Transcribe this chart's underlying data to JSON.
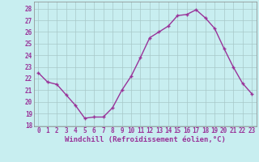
{
  "x": [
    0,
    1,
    2,
    3,
    4,
    5,
    6,
    7,
    8,
    9,
    10,
    11,
    12,
    13,
    14,
    15,
    16,
    17,
    18,
    19,
    20,
    21,
    22,
    23
  ],
  "y": [
    22.5,
    21.7,
    21.5,
    20.6,
    19.7,
    18.6,
    18.7,
    18.7,
    19.5,
    21.0,
    22.2,
    23.8,
    25.5,
    26.0,
    26.5,
    27.4,
    27.5,
    27.9,
    27.2,
    26.3,
    24.6,
    23.0,
    21.6,
    20.7
  ],
  "line_color": "#993399",
  "marker": "+",
  "marker_size": 3,
  "marker_linewidth": 1.0,
  "bg_color": "#c8eef0",
  "grid_color": "#a8c8c8",
  "ylabel_ticks": [
    18,
    19,
    20,
    21,
    22,
    23,
    24,
    25,
    26,
    27,
    28
  ],
  "xlabel_ticks": [
    0,
    1,
    2,
    3,
    4,
    5,
    6,
    7,
    8,
    9,
    10,
    11,
    12,
    13,
    14,
    15,
    16,
    17,
    18,
    19,
    20,
    21,
    22,
    23
  ],
  "xlabel": "Windchill (Refroidissement éolien,°C)",
  "ylim": [
    17.9,
    28.6
  ],
  "xlim": [
    -0.5,
    23.5
  ],
  "tick_fontsize": 5.5,
  "xlabel_fontsize": 6.5,
  "line_width": 1.0,
  "tick_color": "#993399",
  "spine_color": "#888888"
}
